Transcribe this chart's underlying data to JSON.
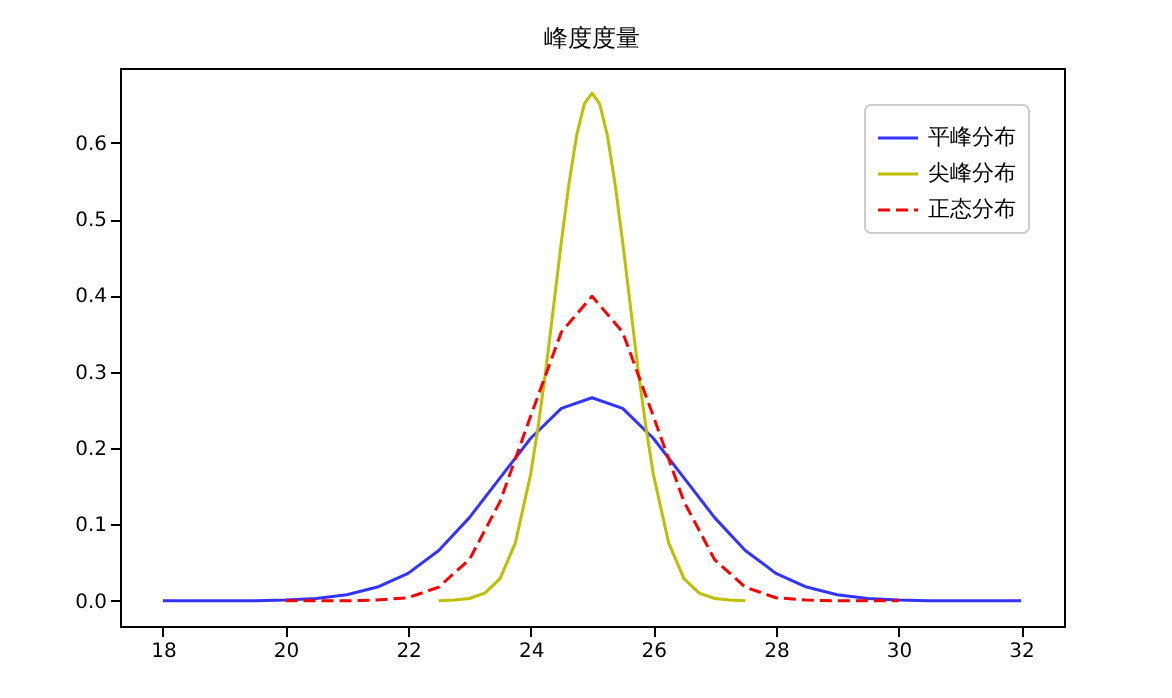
{
  "chart_data": {
    "type": "line",
    "title": "峰度度量",
    "xlim": [
      17.3,
      32.7
    ],
    "xticks": [
      18,
      20,
      22,
      24,
      26,
      28,
      30,
      32
    ],
    "ylim": [
      -0.033,
      0.698
    ],
    "yticks": [
      {
        "value": 0,
        "label": "0.0"
      },
      0.1,
      0.2,
      0.3,
      0.4,
      0.5,
      0.6
    ],
    "grid": false,
    "legend": "top right",
    "series": [
      {
        "name": "平峰分布",
        "color": "#3333ff",
        "line_style": "solid",
        "x": [
          18,
          18.5,
          19,
          19.5,
          20,
          20.5,
          21,
          21.5,
          22,
          22.5,
          23,
          23.5,
          24,
          24.5,
          25,
          25.5,
          26,
          26.5,
          27,
          27.5,
          28,
          28.5,
          29,
          29.5,
          30,
          30.5,
          31,
          31.5,
          32
        ],
        "values": [
          0.0,
          0.0,
          0.0,
          0.0,
          0.001,
          0.003,
          0.008,
          0.018,
          0.036,
          0.066,
          0.109,
          0.161,
          0.213,
          0.252,
          0.266,
          0.252,
          0.213,
          0.161,
          0.109,
          0.066,
          0.036,
          0.018,
          0.008,
          0.003,
          0.001,
          0.0,
          0.0,
          0.0,
          0.0
        ]
      },
      {
        "name": "尖峰分布",
        "color": "#bfbf00",
        "line_style": "solid",
        "x": [
          22.5,
          22.75,
          23,
          23.25,
          23.5,
          23.75,
          24,
          24.125,
          24.25,
          24.375,
          24.5,
          24.625,
          24.75,
          24.875,
          25,
          25.125,
          25.25,
          25.375,
          25.5,
          25.625,
          25.75,
          25.875,
          26,
          26.25,
          26.5,
          26.75,
          27,
          27.25,
          27.5
        ],
        "values": [
          0.0,
          0.001,
          0.003,
          0.01,
          0.029,
          0.076,
          0.166,
          0.23,
          0.304,
          0.387,
          0.47,
          0.547,
          0.61,
          0.651,
          0.665,
          0.651,
          0.61,
          0.547,
          0.47,
          0.387,
          0.304,
          0.23,
          0.166,
          0.076,
          0.029,
          0.01,
          0.003,
          0.001,
          0.0
        ]
      },
      {
        "name": "正态分布",
        "color": "#ff0000",
        "line_style": "dashed",
        "x": [
          20,
          20.5,
          21,
          21.5,
          22,
          22.5,
          23,
          23.5,
          24,
          24.5,
          25,
          25.5,
          26,
          26.5,
          27,
          27.5,
          28,
          28.5,
          29,
          29.5,
          30
        ],
        "values": [
          0.0,
          0.0,
          0.0,
          0.001,
          0.004,
          0.018,
          0.054,
          0.13,
          0.242,
          0.352,
          0.399,
          0.352,
          0.242,
          0.13,
          0.054,
          0.018,
          0.004,
          0.001,
          0.0,
          0.0,
          0.0
        ]
      }
    ]
  }
}
